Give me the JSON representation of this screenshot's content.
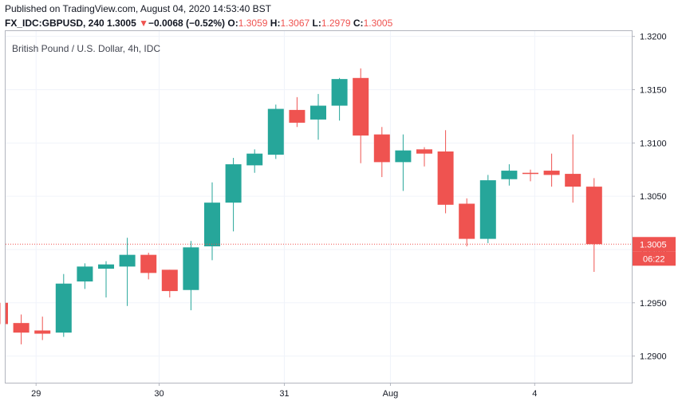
{
  "header": {
    "published": "Published on TradingView.com, August 04, 2020 14:53:40 BST",
    "symbol": "FX_IDC:GBPUSD, 240",
    "last": "1.3005",
    "change_arrow": "▼",
    "change": "−0.0068 (−0.52%)",
    "o_label": "O:",
    "o_value": "1.3059",
    "h_label": "H:",
    "h_value": "1.3067",
    "l_label": "L:",
    "l_value": "1.2979",
    "c_label": "C:",
    "c_value": "1.3005"
  },
  "chart_data": {
    "type": "candlestick",
    "title": "British Pound / U.S. Dollar, 4h, IDC",
    "ylim": [
      1.2875,
      1.3205
    ],
    "y_ticks": [
      1.29,
      1.295,
      1.3,
      1.305,
      1.31,
      1.315,
      1.32
    ],
    "y_tick_labels": [
      "1.2900",
      "1.2950",
      "1.3000",
      "1.3050",
      "1.3100",
      "1.3150",
      "1.3200"
    ],
    "x_ticks": [
      {
        "label": "29",
        "index": 1.7
      },
      {
        "label": "30",
        "index": 7.5
      },
      {
        "label": "31",
        "index": 13.4
      },
      {
        "label": "Aug",
        "index": 18.4
      },
      {
        "label": "4",
        "index": 25.2
      }
    ],
    "last_price": 1.3005,
    "last_price_label": "1.3005",
    "countdown": "06:22",
    "colors": {
      "up": "#26a69a",
      "down": "#ef5350",
      "grid": "#f0f3fa",
      "axis": "#b2b5be",
      "text": "#131722",
      "price_line": "#ef5350"
    },
    "candles": [
      {
        "o": 1.295,
        "h": 1.295,
        "l": 1.293,
        "c": 1.293
      },
      {
        "o": 1.2931,
        "h": 1.2939,
        "l": 1.2911,
        "c": 1.2922
      },
      {
        "o": 1.2924,
        "h": 1.2937,
        "l": 1.2915,
        "c": 1.2921
      },
      {
        "o": 1.2922,
        "h": 1.2977,
        "l": 1.2918,
        "c": 1.2968
      },
      {
        "o": 1.297,
        "h": 1.2987,
        "l": 1.2963,
        "c": 1.2984
      },
      {
        "o": 1.2982,
        "h": 1.2989,
        "l": 1.2955,
        "c": 1.2986
      },
      {
        "o": 1.2984,
        "h": 1.3011,
        "l": 1.2947,
        "c": 1.2995
      },
      {
        "o": 1.2995,
        "h": 1.2997,
        "l": 1.2972,
        "c": 1.2978
      },
      {
        "o": 1.2981,
        "h": 1.2981,
        "l": 1.2955,
        "c": 1.2961
      },
      {
        "o": 1.2962,
        "h": 1.3008,
        "l": 1.2943,
        "c": 1.3002
      },
      {
        "o": 1.3003,
        "h": 1.3063,
        "l": 1.299,
        "c": 1.3044
      },
      {
        "o": 1.3044,
        "h": 1.3086,
        "l": 1.3017,
        "c": 1.308
      },
      {
        "o": 1.3079,
        "h": 1.3094,
        "l": 1.3072,
        "c": 1.309
      },
      {
        "o": 1.3089,
        "h": 1.3136,
        "l": 1.3085,
        "c": 1.3132
      },
      {
        "o": 1.3131,
        "h": 1.3143,
        "l": 1.3115,
        "c": 1.3119
      },
      {
        "o": 1.3122,
        "h": 1.3146,
        "l": 1.3103,
        "c": 1.3135
      },
      {
        "o": 1.3135,
        "h": 1.3161,
        "l": 1.3121,
        "c": 1.316
      },
      {
        "o": 1.3161,
        "h": 1.317,
        "l": 1.3081,
        "c": 1.3107
      },
      {
        "o": 1.3108,
        "h": 1.3115,
        "l": 1.3068,
        "c": 1.3082
      },
      {
        "o": 1.3082,
        "h": 1.3108,
        "l": 1.3055,
        "c": 1.3093
      },
      {
        "o": 1.3094,
        "h": 1.3096,
        "l": 1.3078,
        "c": 1.309
      },
      {
        "o": 1.3092,
        "h": 1.3112,
        "l": 1.3034,
        "c": 1.3042
      },
      {
        "o": 1.3043,
        "h": 1.3048,
        "l": 1.3003,
        "c": 1.301
      },
      {
        "o": 1.301,
        "h": 1.307,
        "l": 1.3006,
        "c": 1.3065
      },
      {
        "o": 1.3066,
        "h": 1.308,
        "l": 1.306,
        "c": 1.3074
      },
      {
        "o": 1.3072,
        "h": 1.3075,
        "l": 1.3064,
        "c": 1.3071
      },
      {
        "o": 1.3074,
        "h": 1.309,
        "l": 1.3059,
        "c": 1.307
      },
      {
        "o": 1.3071,
        "h": 1.3108,
        "l": 1.3044,
        "c": 1.3059
      },
      {
        "o": 1.3059,
        "h": 1.3067,
        "l": 1.2979,
        "c": 1.3005
      }
    ]
  }
}
